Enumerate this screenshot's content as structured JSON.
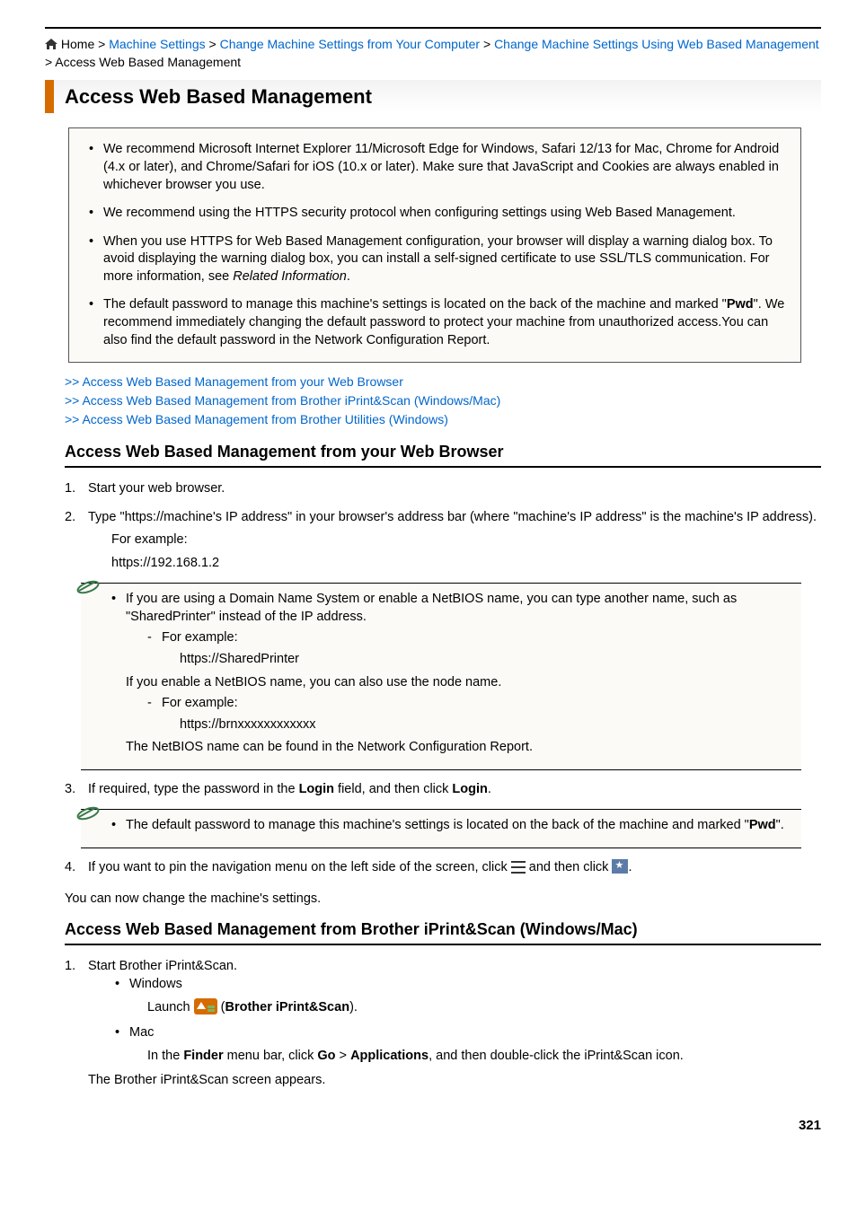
{
  "colors": {
    "accent": "#d66b00",
    "link": "#0066cc",
    "text": "#000000",
    "box_bg": "#fbfaf7",
    "pin_bg": "#5b7ba8"
  },
  "breadcrumb": {
    "home": "Home",
    "items": [
      "Machine Settings",
      "Change Machine Settings from Your Computer",
      "Change Machine Settings Using Web Based Management"
    ],
    "current": "Access Web Based Management",
    "sep": " > "
  },
  "title": "Access Web Based Management",
  "info_items": [
    "We recommend Microsoft Internet Explorer 11/Microsoft Edge for Windows, Safari 12/13 for Mac, Chrome for Android (4.x or later), and Chrome/Safari for iOS (10.x or later). Make sure that JavaScript and Cookies are always enabled in whichever browser you use.",
    "We recommend using the HTTPS security protocol when configuring settings using Web Based Management.",
    "__HTML__When you use HTTPS for Web Based Management configuration, your browser will display a warning dialog box. To avoid displaying the warning dialog box, you can install a self-signed certificate to use SSL/TLS communication. For more information, see <i>Related Information</i>.",
    "__HTML__The default password to manage this machine's settings is located on the back of the machine and marked \"<b>Pwd</b>\". We recommend immediately changing the default password to protect your machine from unauthorized access.You can also find the default password in the Network Configuration Report."
  ],
  "jump_links": [
    ">> Access Web Based Management from your Web Browser",
    ">> Access Web Based Management from Brother iPrint&Scan (Windows/Mac)",
    ">> Access Web Based Management from Brother Utilities (Windows)"
  ],
  "section1": {
    "heading": "Access Web Based Management from your Web Browser",
    "step1": "Start your web browser.",
    "step2": "Type \"https://machine's IP address\" in your browser's address bar (where \"machine's IP address\" is the machine's IP address).",
    "for_example": "For example:",
    "example_ip": "https://192.168.1.2",
    "note1_a": "If you are using a Domain Name System or enable a NetBIOS name, you can type another name, such as \"SharedPrinter\" instead of the IP address.",
    "note1_a_ex": "https://SharedPrinter",
    "note1_b": "If you enable a NetBIOS name, you can also use the node name.",
    "note1_b_ex": "https://brnxxxxxxxxxxxx",
    "note1_c": "The NetBIOS name can be found in the Network Configuration Report.",
    "step3_pre": "If required, type the password in the ",
    "step3_b1": "Login",
    "step3_mid": " field, and then click ",
    "step3_b2": "Login",
    "note2_pre": "The default password to manage this machine's settings is located on the back of the machine and marked \"",
    "note2_b": "Pwd",
    "note2_post": "\".",
    "step4_pre": "If you want to pin the navigation menu on the left side of the screen, click ",
    "step4_mid": " and then click ",
    "after": "You can now change the machine's settings."
  },
  "section2": {
    "heading": "Access Web Based Management from Brother iPrint&Scan (Windows/Mac)",
    "step1": "Start Brother iPrint&Scan.",
    "win": "Windows",
    "launch": "Launch ",
    "app_label": "Brother iPrint&Scan",
    "mac": "Mac",
    "mac_pre": "In the ",
    "finder": "Finder",
    "mac_mid1": " menu bar, click ",
    "go": "Go",
    "mac_mid2": " > ",
    "apps": "Applications",
    "mac_post": ", and then double-click the iPrint&Scan icon.",
    "appears": "The Brother iPrint&Scan screen appears."
  },
  "page": "321"
}
